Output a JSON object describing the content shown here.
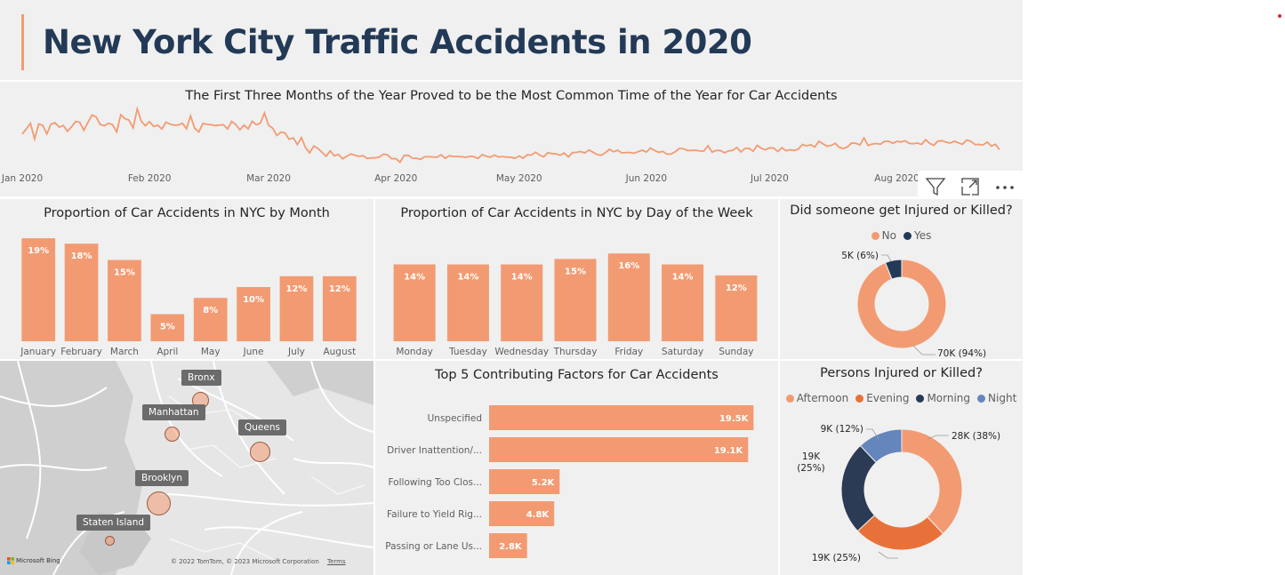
{
  "header": {
    "title": "New York City Traffic Accidents in 2020"
  },
  "toolbar": {
    "filter_icon": "filter-icon",
    "focus_icon": "focus-mode-icon",
    "more_icon": "more-options-icon"
  },
  "colors": {
    "accent": "#f29b72",
    "navy": "#233a57",
    "evening": "#e8713a",
    "morning": "#2b3a55",
    "night": "#6585bd",
    "panel_bg": "#f0f0f0"
  },
  "map": {
    "labels": {
      "bronx": "Bronx",
      "manhattan": "Manhattan",
      "queens": "Queens",
      "brooklyn": "Brooklyn",
      "staten_island": "Staten Island"
    },
    "credit": "© 2022 TomTom, © 2023 Microsoft Corporation",
    "terms": "Terms",
    "provider": "Microsoft Bing"
  },
  "chart_data": [
    {
      "id": "daily",
      "type": "line",
      "title": "The First Three Months of the Year Proved to be the Most Common Time of the Year for Car Accidents",
      "x_ticks": [
        "Jan 2020",
        "Feb 2020",
        "Mar 2020",
        "Apr 2020",
        "May 2020",
        "Jun 2020",
        "Jul 2020",
        "Aug 2020"
      ],
      "x_range": [
        "2020-01-01",
        "2020-08-31"
      ],
      "ylim": [
        0,
        1000
      ],
      "grid": false,
      "y_daily": [
        614,
        651,
        692,
        578,
        687,
        677,
        615,
        686,
        696,
        664,
        676,
        634,
        666,
        705,
        700,
        642,
        699,
        752,
        738,
        683,
        675,
        692,
        681,
        630,
        754,
        726,
        715,
        658,
        797,
        707,
        675,
        704,
        669,
        678,
        651,
        700,
        686,
        678,
        680,
        692,
        652,
        746,
        656,
        630,
        691,
        684,
        682,
        675,
        679,
        681,
        651,
        706,
        683,
        645,
        679,
        652,
        707,
        681,
        693,
        767,
        677,
        656,
        604,
        628,
        622,
        576,
        586,
        538,
        588,
        515,
        477,
        527,
        510,
        481,
        452,
        492,
        456,
        466,
        434,
        452,
        470,
        460,
        452,
        457,
        437,
        441,
        441,
        448,
        469,
        461,
        434,
        436,
        409,
        458,
        460,
        439,
        438,
        430,
        449,
        449,
        448,
        445,
        464,
        438,
        457,
        451,
        451,
        450,
        445,
        452,
        449,
        437,
        465,
        453,
        446,
        461,
        447,
        451,
        446,
        446,
        438,
        455,
        439,
        463,
        462,
        482,
        462,
        449,
        479,
        472,
        470,
        460,
        476,
        448,
        479,
        481,
        487,
        477,
        498,
        482,
        465,
        460,
        479,
        503,
        485,
        497,
        477,
        480,
        480,
        475,
        486,
        497,
        483,
        513,
        495,
        481,
        488,
        468,
        469,
        485,
        510,
        507,
        495,
        495,
        496,
        491,
        490,
        529,
        483,
        495,
        495,
        478,
        491,
        495,
        517,
        484,
        509,
        511,
        489,
        532,
        510,
        500,
        514,
        512,
        488,
        514,
        493,
        500,
        494,
        505,
        539,
        528,
        537,
        520,
        562,
        543,
        526,
        531,
        547,
        517,
        509,
        521,
        550,
        547,
        535,
        586,
        530,
        542,
        545,
        540,
        561,
        562,
        547,
        561,
        557,
        565,
        546,
        544,
        549,
        538,
        573,
        546,
        532,
        563,
        566,
        555,
        549,
        562,
        550,
        540,
        571,
        561,
        538,
        539,
        535,
        556,
        527,
        540,
        500
      ]
    },
    {
      "id": "by_month",
      "type": "bar",
      "title": "Proportion of Car Accidents in NYC by Month",
      "categories": [
        "January",
        "February",
        "March",
        "April",
        "May",
        "June",
        "July",
        "August"
      ],
      "values": [
        19,
        18,
        15,
        5,
        8,
        10,
        12,
        12
      ],
      "data_labels": [
        "19%",
        "18%",
        "15%",
        "5%",
        "8%",
        "10%",
        "12%",
        "12%"
      ],
      "ylim": [
        0,
        20
      ]
    },
    {
      "id": "by_weekday",
      "type": "bar",
      "title": "Proportion of Car Accidents in NYC by Day of the Week",
      "categories": [
        "Monday",
        "Tuesday",
        "Wednesday",
        "Thursday",
        "Friday",
        "Saturday",
        "Sunday"
      ],
      "values": [
        14,
        14,
        14,
        15,
        16,
        14,
        12
      ],
      "data_labels": [
        "14%",
        "14%",
        "14%",
        "15%",
        "16%",
        "14%",
        "12%"
      ],
      "ylim": [
        0,
        17
      ]
    },
    {
      "id": "injured",
      "type": "pie",
      "title": "Did someone get Injured or Killed?",
      "legend_position": "top",
      "slices": [
        {
          "name": "No",
          "value": 94,
          "label": "70K (94%)",
          "color": "#f29b72"
        },
        {
          "name": "Yes",
          "value": 6,
          "label": "5K (6%)",
          "color": "#233a57"
        }
      ]
    },
    {
      "id": "factors",
      "type": "bar",
      "orientation": "horizontal",
      "title": "Top 5 Contributing Factors for Car Accidents",
      "categories": [
        "Unspecified",
        "Driver Inattention/...",
        "Following Too Clos...",
        "Failure to Yield Rig...",
        "Passing or Lane Us..."
      ],
      "values": [
        19500,
        19100,
        5200,
        4800,
        2800
      ],
      "data_labels": [
        "19.5K",
        "19.1K",
        "5.2K",
        "4.8K",
        "2.8K"
      ],
      "xlim": [
        0,
        20000
      ]
    },
    {
      "id": "persons",
      "type": "pie",
      "title": "Persons Injured or Killed?",
      "legend_position": "top",
      "slices": [
        {
          "name": "Afternoon",
          "value": 38,
          "label": "28K (38%)",
          "color": "#f29b72"
        },
        {
          "name": "Evening",
          "value": 25,
          "label": "19K (25%)",
          "color": "#e8713a"
        },
        {
          "name": "Morning",
          "value": 25,
          "label": "19K\n(25%)",
          "color": "#2b3a55"
        },
        {
          "name": "Night",
          "value": 12,
          "label": "9K (12%)",
          "color": "#6585bd"
        }
      ]
    }
  ]
}
